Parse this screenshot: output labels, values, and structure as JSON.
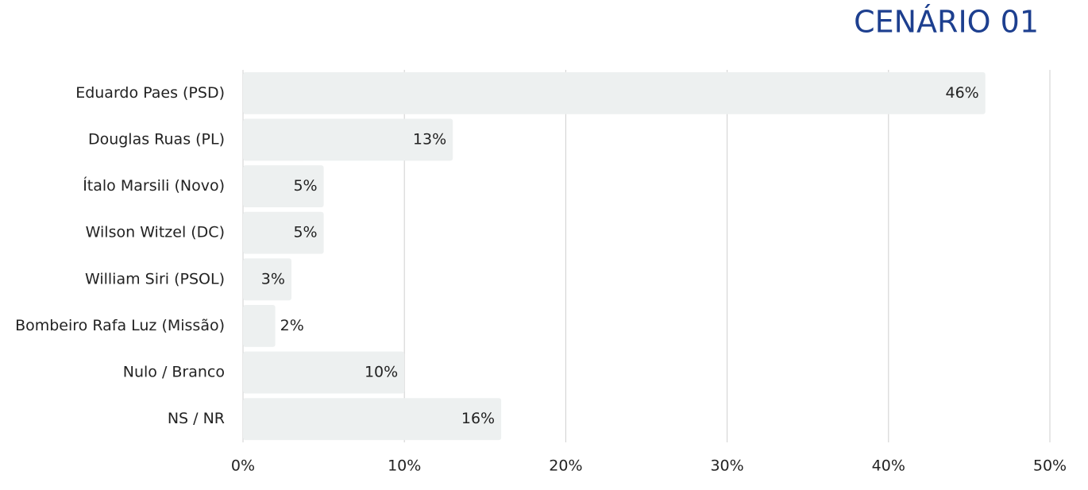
{
  "chart_data": {
    "type": "hbar",
    "title": "CENÁRIO 01",
    "categories": [
      "Eduardo Paes (PSD)",
      "Douglas Ruas (PL)",
      "Ítalo Marsili (Novo)",
      "Wilson Witzel (DC)",
      "William Siri (PSOL)",
      "Bombeiro Rafa Luz (Missão)",
      "Nulo / Branco",
      "NS / NR"
    ],
    "values": [
      46,
      13,
      5,
      5,
      3,
      2,
      10,
      16
    ],
    "value_labels": [
      "46%",
      "13%",
      "5%",
      "5%",
      "3%",
      "2%",
      "10%",
      "16%"
    ],
    "color": "#edf0f0",
    "xlim": [
      0,
      50
    ],
    "xticks": [
      {
        "value": 0,
        "label": "0%"
      },
      {
        "value": 10,
        "label": "10%"
      },
      {
        "value": 20,
        "label": "20%"
      },
      {
        "value": 30,
        "label": "30%"
      },
      {
        "value": 40,
        "label": "40%"
      },
      {
        "value": 50,
        "label": "50%"
      }
    ],
    "grid": true
  }
}
